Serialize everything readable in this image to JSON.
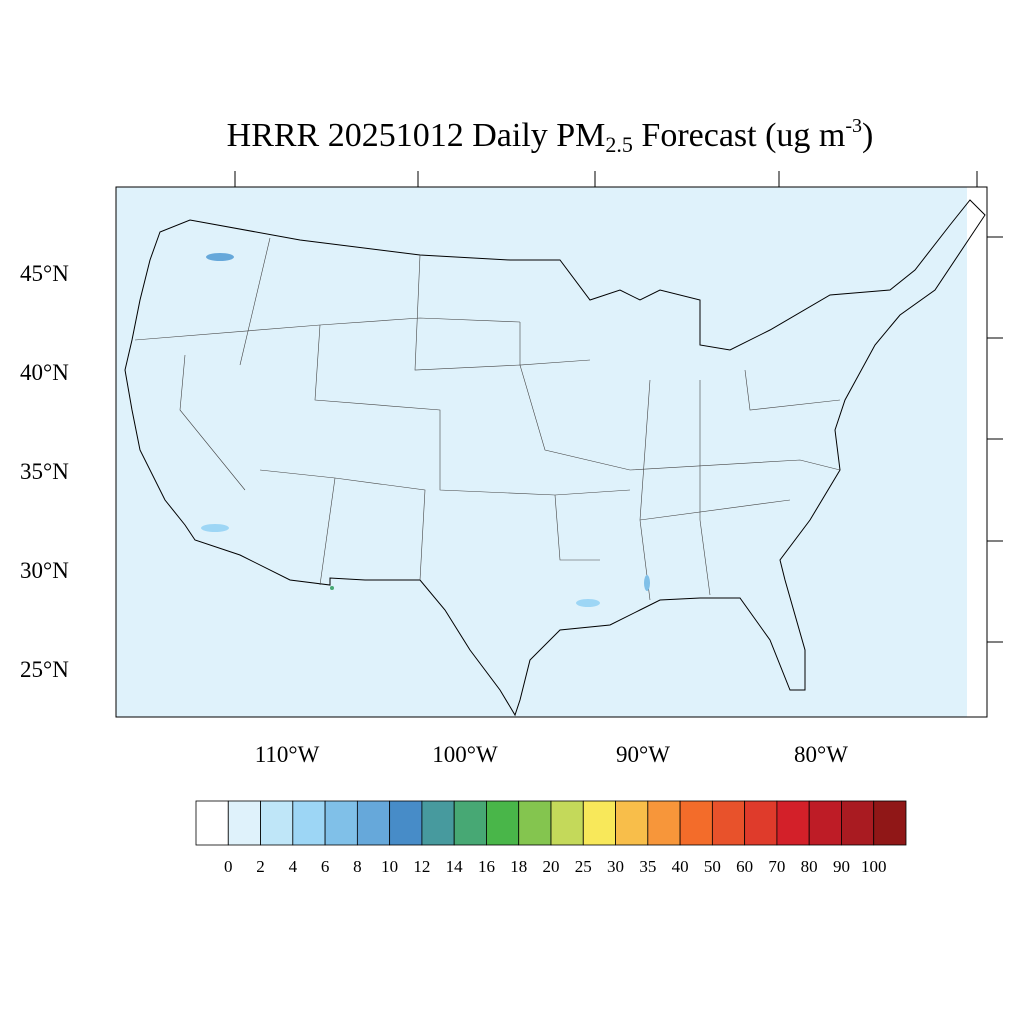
{
  "title": {
    "prefix": "HRRR 20251012 Daily PM",
    "subscript": "2.5",
    "middle": " Forecast (ug m",
    "superscript": "-3",
    "suffix": ")"
  },
  "map": {
    "projection": "lambert-conformal",
    "region": "CONUS",
    "background_color": "#dff2fb",
    "lat_labels": [
      "45°N",
      "40°N",
      "35°N",
      "30°N",
      "25°N"
    ],
    "lon_labels": [
      "110°W",
      "100°W",
      "90°W",
      "80°W"
    ]
  },
  "colorbar": {
    "labels": [
      "0",
      "2",
      "4",
      "6",
      "8",
      "10",
      "12",
      "14",
      "16",
      "18",
      "20",
      "25",
      "30",
      "35",
      "40",
      "50",
      "60",
      "70",
      "80",
      "90",
      "100"
    ],
    "colors": [
      "#ffffff",
      "#dff2fb",
      "#bfe6f8",
      "#9dd6f5",
      "#80c0e8",
      "#66a8da",
      "#478cc8",
      "#479a9e",
      "#47a874",
      "#49b649",
      "#84c54f",
      "#c4d95a",
      "#f8e85a",
      "#f8be4a",
      "#f7963a",
      "#f36c2a",
      "#e8522b",
      "#df3b2b",
      "#d32029",
      "#be1c26",
      "#a91b21",
      "#901717"
    ]
  }
}
